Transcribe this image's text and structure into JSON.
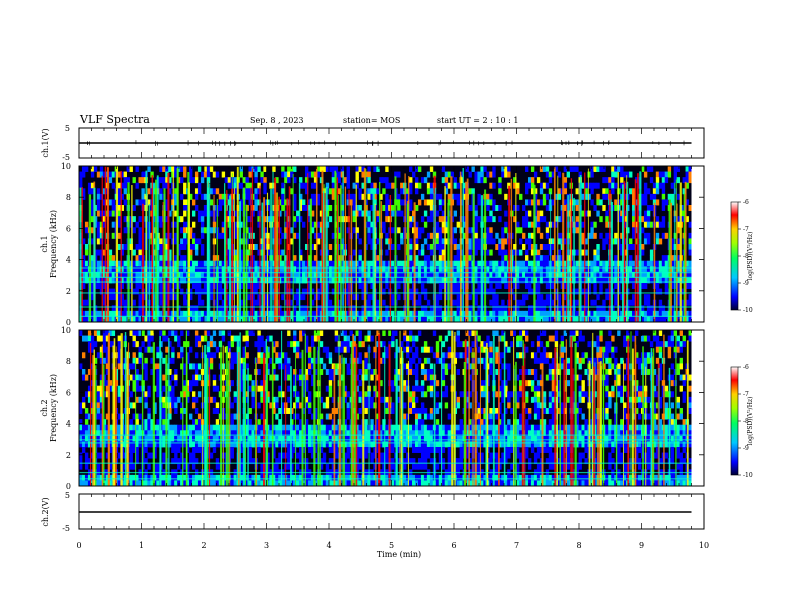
{
  "header": {
    "title": "VLF Spectra",
    "date": "Sep. 8 , 2023",
    "station": "station= MOS",
    "start": "start  UT =  2 : 10 : 1"
  },
  "chart_data": [
    {
      "type": "line",
      "panel": "ch1-waveform",
      "ylabel": "ch.1(V)",
      "yticks": [
        "5",
        "-5"
      ],
      "ylim": [
        -5,
        5
      ],
      "xlim": [
        0,
        10
      ],
      "trace_level": 0,
      "data_end": 9.8
    },
    {
      "type": "heatmap",
      "panel": "ch1-spectrogram",
      "ylabel": "ch.1\nFrequency (kHz)",
      "ylabel_ch": "ch.1",
      "ylabel_freq": "Frequency (kHz)",
      "yticks": [
        "0",
        "2",
        "4",
        "6",
        "8",
        "10"
      ],
      "ylim": [
        0,
        10
      ],
      "xlim": [
        0,
        10
      ],
      "colorbar": {
        "ticks": [
          "-6",
          "-7",
          "-8",
          "-9",
          "-10"
        ],
        "range": [
          -10,
          -6
        ],
        "label": "log(PSD)(V²/Hz)"
      }
    },
    {
      "type": "heatmap",
      "panel": "ch2-spectrogram",
      "ylabel": "ch.2\nFrequency (kHz)",
      "ylabel_ch": "ch.2",
      "ylabel_freq": "Frequency (kHz)",
      "yticks": [
        "0",
        "2",
        "4",
        "6",
        "8",
        "10"
      ],
      "ylim": [
        0,
        10
      ],
      "xlim": [
        0,
        10
      ],
      "colorbar": {
        "ticks": [
          "-6",
          "-7",
          "-8",
          "-9",
          "-10"
        ],
        "range": [
          -10,
          -6
        ],
        "label": "log(PSD)(V²/Hz)"
      }
    },
    {
      "type": "line",
      "panel": "ch2-waveform",
      "ylabel": "ch.2(V)",
      "yticks": [
        "5",
        "-5"
      ],
      "ylim": [
        -5,
        5
      ],
      "xlim": [
        0,
        10
      ],
      "trace_level": 0,
      "data_end": 9.8,
      "xlabel": "Time (min)",
      "xticks": [
        "0",
        "1",
        "2",
        "3",
        "4",
        "5",
        "6",
        "7",
        "8",
        "9",
        "10"
      ]
    }
  ],
  "colors": {
    "colormap": [
      "#00003a",
      "#0000ff",
      "#00a0ff",
      "#00ffc0",
      "#40ff00",
      "#ffff00",
      "#ff8000",
      "#ff0000",
      "#ffffff"
    ]
  }
}
